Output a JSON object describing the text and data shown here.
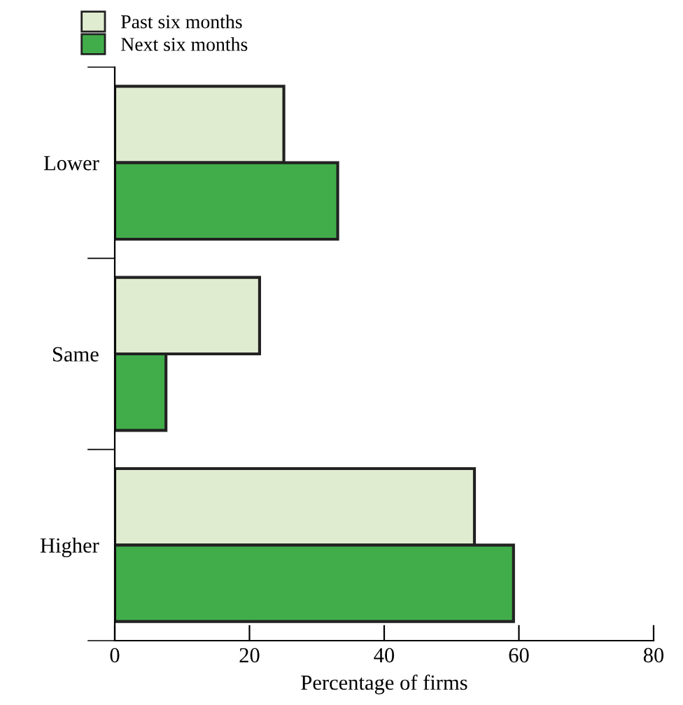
{
  "chart_data": {
    "type": "bar",
    "orientation": "horizontal",
    "xlabel": "Percentage of firms",
    "categories": [
      "Lower",
      "Same",
      "Higher"
    ],
    "series": [
      {
        "name": "Past six months",
        "color": "#e0ecd0",
        "values": [
          25.1,
          21.5,
          53.4
        ]
      },
      {
        "name": "Next six months",
        "color": "#41ad4a",
        "values": [
          33.1,
          7.6,
          59.2
        ]
      }
    ],
    "xlim": [
      0,
      80
    ],
    "xticks": [
      0,
      20,
      40,
      60,
      80
    ],
    "grid": false,
    "legend": "top left"
  }
}
